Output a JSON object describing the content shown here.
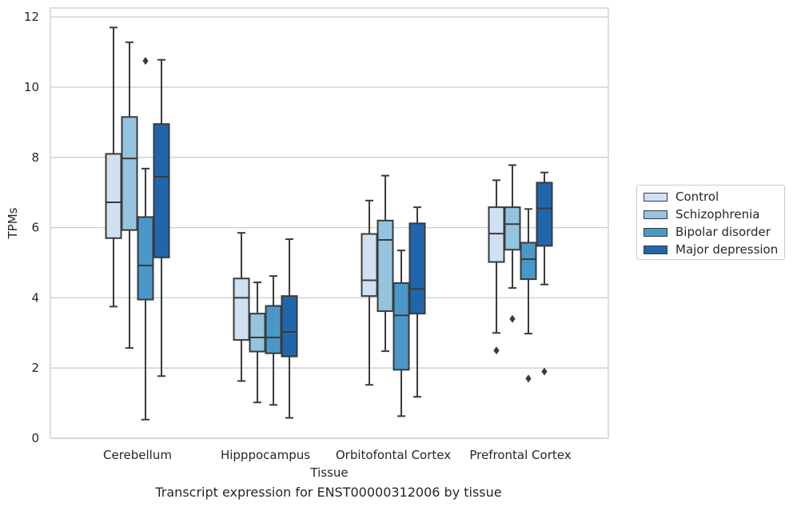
{
  "caption": "Transcript expression for ENST00000312006 by tissue",
  "chart_data": {
    "type": "box",
    "xlabel": "Tissue",
    "ylabel": "TPMs",
    "ylim": [
      0,
      12.2
    ],
    "yticks": [
      0,
      2,
      4,
      6,
      8,
      10,
      12
    ],
    "grid": true,
    "legend_position": "right",
    "categories": [
      "Cerebellum",
      "Hipppocampus",
      "Orbitofontal Cortex",
      "Prefrontal Cortex"
    ],
    "series": [
      {
        "name": "Control",
        "color": "#d0e1f2",
        "boxes": [
          {
            "whislo": 3.75,
            "q1": 5.7,
            "med": 6.72,
            "q3": 8.1,
            "whishi": 11.7,
            "fliers": []
          },
          {
            "whislo": 1.63,
            "q1": 2.8,
            "med": 4.0,
            "q3": 4.55,
            "whishi": 5.85,
            "fliers": []
          },
          {
            "whislo": 1.52,
            "q1": 4.05,
            "med": 4.5,
            "q3": 5.82,
            "whishi": 6.77,
            "fliers": []
          },
          {
            "whislo": 3.0,
            "q1": 5.02,
            "med": 5.83,
            "q3": 6.58,
            "whishi": 7.35,
            "fliers": [
              2.5
            ]
          }
        ]
      },
      {
        "name": "Schizophrenia",
        "color": "#94c4df",
        "boxes": [
          {
            "whislo": 2.57,
            "q1": 5.93,
            "med": 7.97,
            "q3": 9.15,
            "whishi": 11.28,
            "fliers": []
          },
          {
            "whislo": 1.02,
            "q1": 2.47,
            "med": 2.87,
            "q3": 3.55,
            "whishi": 4.44,
            "fliers": []
          },
          {
            "whislo": 2.48,
            "q1": 3.62,
            "med": 5.65,
            "q3": 6.2,
            "whishi": 7.48,
            "fliers": []
          },
          {
            "whislo": 4.28,
            "q1": 5.37,
            "med": 6.1,
            "q3": 6.58,
            "whishi": 7.78,
            "fliers": [
              3.4
            ]
          }
        ]
      },
      {
        "name": "Bipolar disorder",
        "color": "#4a98c9",
        "boxes": [
          {
            "whislo": 0.53,
            "q1": 3.95,
            "med": 4.92,
            "q3": 6.3,
            "whishi": 7.68,
            "fliers": [
              10.75
            ]
          },
          {
            "whislo": 0.95,
            "q1": 2.42,
            "med": 2.87,
            "q3": 3.77,
            "whishi": 4.62,
            "fliers": []
          },
          {
            "whislo": 0.63,
            "q1": 1.95,
            "med": 3.5,
            "q3": 4.42,
            "whishi": 5.35,
            "fliers": []
          },
          {
            "whislo": 2.98,
            "q1": 4.53,
            "med": 5.1,
            "q3": 5.57,
            "whishi": 6.53,
            "fliers": [
              1.7
            ]
          }
        ]
      },
      {
        "name": "Major depression",
        "color": "#2166ac",
        "boxes": [
          {
            "whislo": 1.77,
            "q1": 5.15,
            "med": 7.45,
            "q3": 8.95,
            "whishi": 10.78,
            "fliers": []
          },
          {
            "whislo": 0.58,
            "q1": 2.33,
            "med": 3.03,
            "q3": 4.05,
            "whishi": 5.67,
            "fliers": []
          },
          {
            "whislo": 1.18,
            "q1": 3.55,
            "med": 4.25,
            "q3": 6.12,
            "whishi": 6.58,
            "fliers": []
          },
          {
            "whislo": 4.38,
            "q1": 5.48,
            "med": 6.55,
            "q3": 7.28,
            "whishi": 7.57,
            "fliers": [
              1.9
            ]
          }
        ]
      }
    ]
  }
}
